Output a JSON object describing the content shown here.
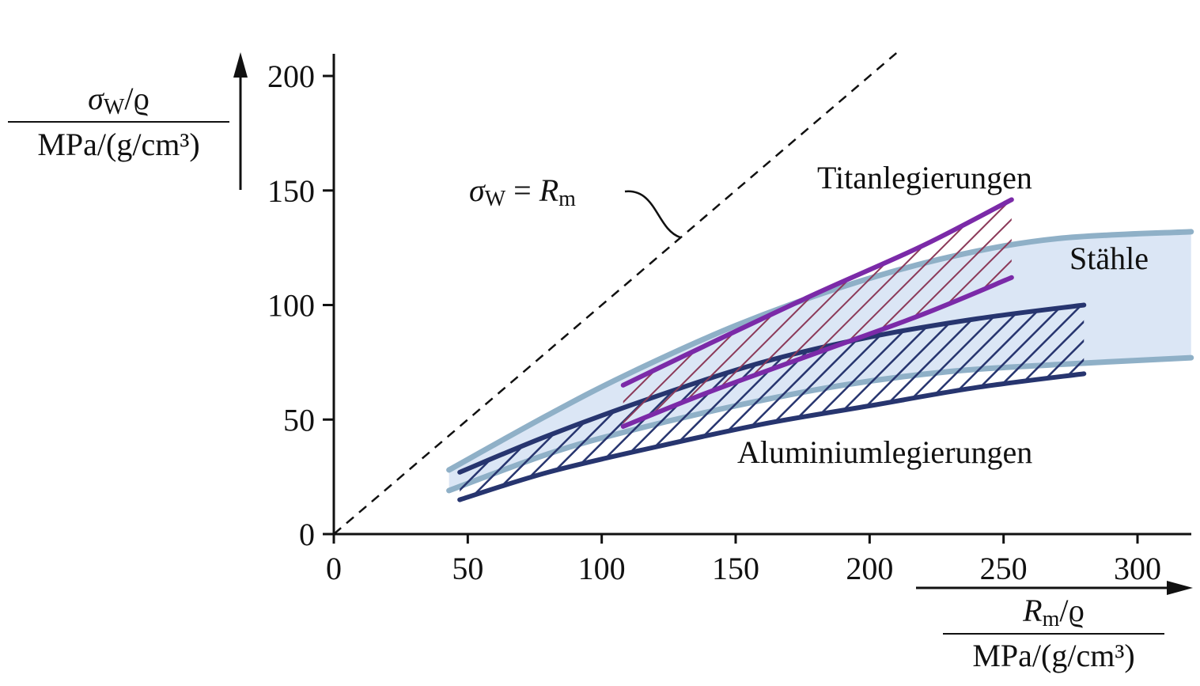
{
  "chart_data": {
    "type": "area",
    "xlim": [
      0,
      320
    ],
    "ylim": [
      0,
      200
    ],
    "x_ticks": [
      "0",
      "50",
      "100",
      "150",
      "200",
      "250",
      "300"
    ],
    "y_ticks": [
      "0",
      "50",
      "100",
      "150",
      "200"
    ],
    "x_tick_values": [
      0,
      50,
      100,
      150,
      200,
      250,
      300
    ],
    "y_tick_values": [
      0,
      50,
      100,
      150,
      200
    ],
    "xlabel": {
      "numerator_sym": "R",
      "numerator_sub": "m",
      "numerator_rest": "/ϱ",
      "denominator": "MPa/(g/cm³)"
    },
    "ylabel": {
      "numerator_sym": "σ",
      "numerator_sub": "W",
      "numerator_rest": "/ϱ",
      "denominator": "MPa/(g/cm³)"
    },
    "reference_line": {
      "label_lhs_sym": "σ",
      "label_lhs_sub": "W",
      "label_eq": " = ",
      "label_rhs_sym": "R",
      "label_rhs_sub": "m",
      "x": [
        0,
        210
      ],
      "y": [
        0,
        210
      ]
    },
    "colors": {
      "steel_fill": "#dbe6f5",
      "steel_line": "#8fb0c7",
      "titanium": "#7b2aa8",
      "titanium_hatch": "#8c3a5a",
      "aluminium": "#27356f"
    },
    "series": [
      {
        "name": "Stähle",
        "upper": {
          "x": [
            43,
            80,
            110,
            150,
            190,
            230,
            270,
            320
          ],
          "y": [
            28,
            52,
            70,
            91,
            108,
            121,
            129,
            132
          ]
        },
        "lower": {
          "x": [
            43,
            80,
            110,
            150,
            190,
            230,
            270,
            320
          ],
          "y": [
            19,
            35,
            45,
            56,
            65,
            71,
            74,
            77
          ]
        }
      },
      {
        "name": "Titanlegierungen",
        "upper": {
          "x": [
            108,
            140,
            180,
            220,
            253
          ],
          "y": [
            65,
            83,
            105,
            126,
            146
          ]
        },
        "lower": {
          "x": [
            108,
            140,
            180,
            220,
            253
          ],
          "y": [
            47,
            62,
            79,
            96,
            112
          ]
        }
      },
      {
        "name": "Aluminiumlegierungen",
        "upper": {
          "x": [
            47,
            80,
            120,
            160,
            200,
            240,
            280
          ],
          "y": [
            27,
            43,
            60,
            75,
            86,
            94,
            100
          ]
        },
        "lower": {
          "x": [
            47,
            80,
            120,
            160,
            200,
            240,
            280
          ],
          "y": [
            15,
            27,
            38,
            48,
            56,
            64,
            70
          ]
        }
      }
    ]
  }
}
